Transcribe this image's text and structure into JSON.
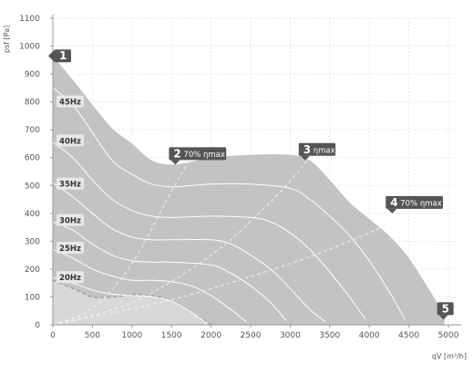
{
  "chart_data": {
    "type": "area",
    "title": "",
    "xlabel": "qV [m³/h]",
    "ylabel": "psf [Pa]",
    "xlim": [
      0,
      5000
    ],
    "ylim": [
      0,
      1100
    ],
    "xticks": [
      "0",
      "500",
      "1000",
      "1500",
      "2000",
      "2500",
      "3000",
      "3500",
      "4000",
      "4500",
      "5000"
    ],
    "yticks": [
      "0",
      "100",
      "200",
      "300",
      "400",
      "500",
      "600",
      "700",
      "800",
      "900",
      "1000",
      "1100"
    ],
    "grid": true,
    "colors": {
      "envelope": "#c3c3c3",
      "inner_region": "#d8d8d8",
      "curves": "#ffffff",
      "label_box": "#e8e8e8",
      "marker": "#555555"
    },
    "envelope": {
      "x": [
        0,
        250,
        500,
        750,
        1000,
        1250,
        1500,
        1750,
        2000,
        2500,
        3000,
        3250,
        3500,
        3750,
        4000,
        4250,
        4500,
        4750,
        4950
      ],
      "y": [
        965,
        880,
        790,
        705,
        650,
        590,
        575,
        585,
        600,
        610,
        610,
        590,
        520,
        440,
        380,
        320,
        240,
        130,
        35
      ]
    },
    "inner_region": {
      "x": [
        0,
        300,
        500,
        750,
        1000,
        1250,
        1500,
        1750,
        2000
      ],
      "y": [
        160,
        125,
        100,
        100,
        108,
        105,
        85,
        45,
        0
      ]
    },
    "series": [
      {
        "name": "45Hz",
        "x": [
          0,
          250,
          500,
          750,
          1000,
          1250,
          1500,
          1750,
          2000,
          2500,
          3000,
          3250,
          3500,
          3750,
          4000,
          4250,
          4450
        ],
        "y": [
          850,
          790,
          690,
          590,
          540,
          505,
          495,
          500,
          505,
          505,
          490,
          450,
          390,
          320,
          230,
          120,
          20
        ]
      },
      {
        "name": "40Hz",
        "x": [
          0,
          250,
          500,
          750,
          1000,
          1250,
          1500,
          2000,
          2500,
          2750,
          3000,
          3250,
          3500,
          3750,
          3950
        ],
        "y": [
          655,
          600,
          520,
          450,
          410,
          390,
          385,
          390,
          385,
          370,
          330,
          270,
          190,
          100,
          20
        ]
      },
      {
        "name": "35Hz",
        "x": [
          0,
          250,
          500,
          750,
          1000,
          1250,
          1500,
          2000,
          2250,
          2500,
          2750,
          3000,
          3250,
          3450
        ],
        "y": [
          510,
          460,
          400,
          345,
          315,
          305,
          305,
          305,
          290,
          250,
          200,
          130,
          55,
          10
        ]
      },
      {
        "name": "30Hz",
        "x": [
          0,
          250,
          500,
          750,
          1000,
          1250,
          1500,
          2000,
          2250,
          2500,
          2750,
          2950
        ],
        "y": [
          370,
          340,
          290,
          250,
          230,
          225,
          225,
          215,
          185,
          140,
          80,
          15
        ]
      },
      {
        "name": "25Hz",
        "x": [
          0,
          250,
          500,
          750,
          1000,
          1250,
          1500,
          1750,
          2000,
          2250,
          2450
        ],
        "y": [
          270,
          240,
          200,
          175,
          160,
          160,
          155,
          140,
          105,
          55,
          10
        ]
      },
      {
        "name": "20Hz",
        "x": [
          0,
          250,
          500,
          750,
          1000,
          1250,
          1500,
          1750,
          1950
        ],
        "y": [
          170,
          150,
          125,
          110,
          105,
          100,
          85,
          45,
          5
        ]
      }
    ],
    "system_curves": [
      {
        "name": "70% ηmax",
        "x": [
          0,
          500,
          1000,
          1500,
          1750
        ],
        "y": [
          0,
          60,
          220,
          480,
          600
        ]
      },
      {
        "name": "ηmax",
        "x": [
          0,
          1000,
          2000,
          2750,
          3250
        ],
        "y": [
          0,
          80,
          250,
          440,
          600
        ]
      },
      {
        "name": "70% ηmax",
        "x": [
          0,
          1500,
          3000,
          4000,
          4400
        ],
        "y": [
          0,
          90,
          220,
          330,
          390
        ]
      }
    ],
    "hz_labels": [
      {
        "text": "45Hz",
        "y": 800
      },
      {
        "text": "40Hz",
        "y": 660
      },
      {
        "text": "35Hz",
        "y": 505
      },
      {
        "text": "30Hz",
        "y": 375
      },
      {
        "text": "25Hz",
        "y": 275
      },
      {
        "text": "20Hz",
        "y": 170
      }
    ],
    "points": [
      {
        "num": "1",
        "label": "",
        "x": 0,
        "y": 965
      },
      {
        "num": "2",
        "label": "70% ηmax",
        "x": 1560,
        "y": 575
      },
      {
        "num": "3",
        "label": "ηmax",
        "x": 3200,
        "y": 590
      },
      {
        "num": "4",
        "label": "70% ηmax",
        "x": 4300,
        "y": 400
      },
      {
        "num": "5",
        "label": "",
        "x": 4950,
        "y": 35
      }
    ]
  }
}
